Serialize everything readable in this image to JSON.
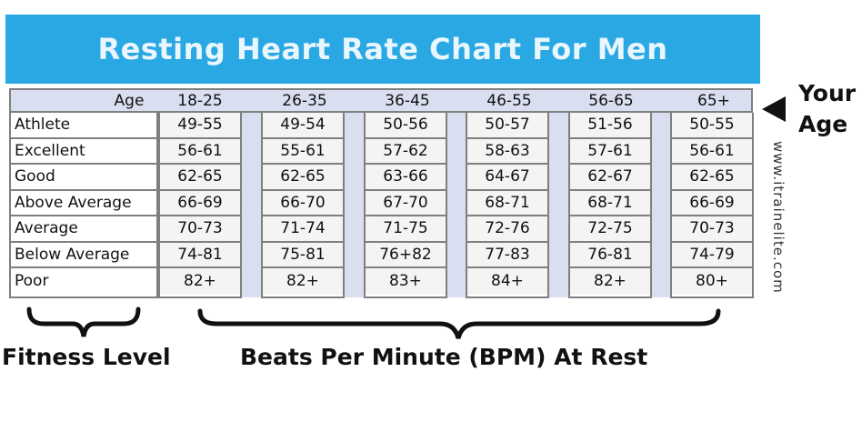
{
  "title": "Resting Heart Rate Chart For Men",
  "your_age_line1": "Your",
  "your_age_line2": "Age",
  "website": "www.itrainelite.com",
  "fitness_level_label": "Fitness Level",
  "bpm_label": "Beats Per Minute (BPM) At Rest",
  "colors": {
    "banner": "#29a8e3",
    "header_bg": "#d9dff0",
    "border": "#7f7f7f"
  },
  "chart_data": {
    "type": "table",
    "title": "Resting Heart Rate Chart For Men",
    "row_header": "Age",
    "columns": [
      "18-25",
      "26-35",
      "36-45",
      "46-55",
      "56-65",
      "65+"
    ],
    "rows": [
      {
        "label": "Athlete",
        "values": [
          "49-55",
          "49-54",
          "50-56",
          "50-57",
          "51-56",
          "50-55"
        ]
      },
      {
        "label": "Excellent",
        "values": [
          "56-61",
          "55-61",
          "57-62",
          "58-63",
          "57-61",
          "56-61"
        ]
      },
      {
        "label": "Good",
        "values": [
          "62-65",
          "62-65",
          "63-66",
          "64-67",
          "62-67",
          "62-65"
        ]
      },
      {
        "label": "Above Average",
        "values": [
          "66-69",
          "66-70",
          "67-70",
          "68-71",
          "68-71",
          "66-69"
        ]
      },
      {
        "label": "Average",
        "values": [
          "70-73",
          "71-74",
          "71-75",
          "72-76",
          "72-75",
          "70-73"
        ]
      },
      {
        "label": "Below Average",
        "values": [
          "74-81",
          "75-81",
          "76+82",
          "77-83",
          "76-81",
          "74-79"
        ]
      },
      {
        "label": "Poor",
        "values": [
          "82+",
          "82+",
          "83+",
          "84+",
          "82+",
          "80+"
        ]
      }
    ]
  }
}
